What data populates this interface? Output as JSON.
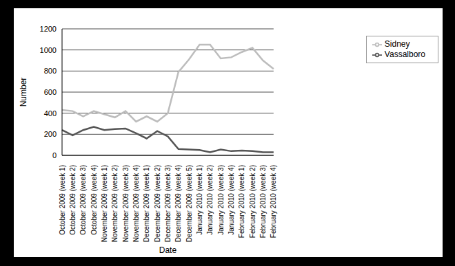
{
  "chart_data": {
    "type": "line",
    "x_label": "Date",
    "y_label": "Number",
    "categories": [
      "October 2009 (week 1)",
      "October 2009 (week 2)",
      "October 2009 (week 3)",
      "October 2009 (week 4)",
      "November 2009 (week 1)",
      "November 2009 (week 2)",
      "November 2009 (week 3)",
      "November 2009 (week 4)",
      "December 2009 (week 1)",
      "December 2009 (week 2)",
      "December 2009 (week 3)",
      "December 2009 (week 4)",
      "December 2009 (week 5)",
      "January 2010 (week 1)",
      "January 2010 (week 2)",
      "January 2010 (week 3)",
      "January 2010 (week 4)",
      "February 2010 (week 1)",
      "February 2010 (week 2)",
      "February 2010 (week 3)",
      "February 2010 (week 4)"
    ],
    "series": [
      {
        "name": "Sidney",
        "color": "#bdbdbd",
        "marker": "none",
        "values": [
          430,
          420,
          370,
          420,
          390,
          360,
          420,
          320,
          370,
          320,
          400,
          790,
          910,
          1050,
          1050,
          920,
          930,
          980,
          1020,
          900,
          820
        ]
      },
      {
        "name": "Vassalboro",
        "color": "#555555",
        "marker": "none",
        "values": [
          240,
          190,
          240,
          270,
          240,
          250,
          255,
          210,
          160,
          230,
          180,
          60,
          55,
          50,
          30,
          55,
          40,
          45,
          40,
          30,
          30
        ]
      }
    ],
    "ylim": [
      0,
      1200
    ],
    "yticks": [
      0,
      200,
      400,
      600,
      800,
      1000,
      1200
    ],
    "grid": true,
    "legend": "right"
  }
}
